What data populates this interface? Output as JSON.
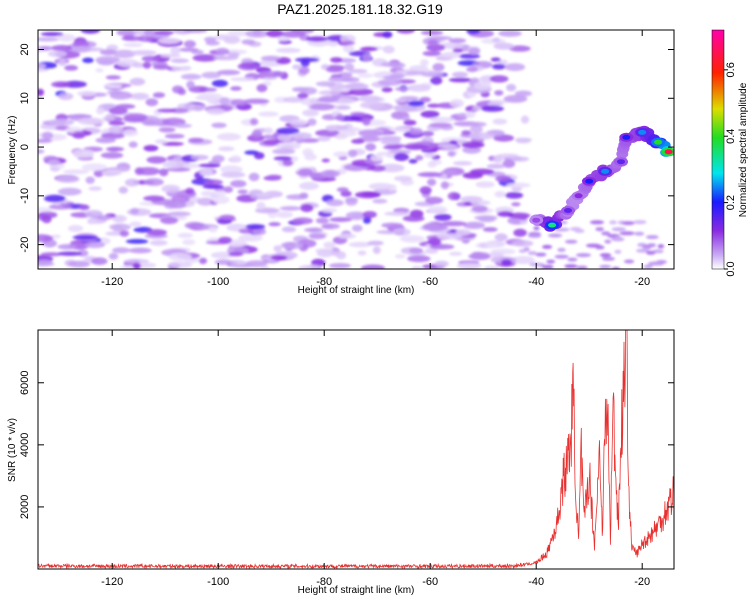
{
  "figure_title": "PAZ1.2025.181.18.32.G19",
  "chart_data": [
    {
      "type": "heatmap",
      "title": "PAZ1.2025.181.18.32.G19",
      "xlabel": "Height of straight line (km)",
      "ylabel": "Frequency (Hz)",
      "xlim": [
        -134,
        -14
      ],
      "ylim": [
        -25,
        24
      ],
      "xticks": [
        -120,
        -100,
        -80,
        -60,
        -40,
        -20
      ],
      "yticks": [
        -20,
        -10,
        0,
        10,
        20
      ],
      "colorbar": {
        "label": "Normalized spectral amplitude",
        "range": [
          0,
          0.72
        ],
        "ticks": [
          0.0,
          0.2,
          0.4,
          0.6
        ],
        "colormap": "rainbow (white-violet-blue-cyan-green-yellow-red-magenta)"
      },
      "noise_region": {
        "x_range": [
          -134,
          -42
        ],
        "f_range": [
          -25,
          24
        ],
        "typical_amplitude": 0.05
      },
      "signal_ridge": [
        {
          "x": -40,
          "f": -15,
          "amp": 0.1
        },
        {
          "x": -37,
          "f": -16,
          "amp": 0.35
        },
        {
          "x": -34,
          "f": -13,
          "amp": 0.15
        },
        {
          "x": -32,
          "f": -10,
          "amp": 0.12
        },
        {
          "x": -30,
          "f": -7,
          "amp": 0.2
        },
        {
          "x": -27,
          "f": -5,
          "amp": 0.25
        },
        {
          "x": -24,
          "f": -3,
          "amp": 0.15
        },
        {
          "x": -23,
          "f": 2,
          "amp": 0.2
        },
        {
          "x": -20,
          "f": 3,
          "amp": 0.25
        },
        {
          "x": -17,
          "f": 1,
          "amp": 0.4
        },
        {
          "x": -15,
          "f": -1,
          "amp": 0.65
        }
      ],
      "grid": false
    },
    {
      "type": "line",
      "xlabel": "Height of straight line (km)",
      "ylabel": "SNR (10 * v/v)",
      "xlim": [
        -134,
        -14
      ],
      "ylim": [
        0,
        7700
      ],
      "xticks": [
        -120,
        -100,
        -80,
        -60,
        -40,
        -20
      ],
      "yticks": [
        2000,
        4000,
        6000
      ],
      "color": "#e8312f",
      "series": [
        {
          "x": [
            -134,
            -120,
            -100,
            -80,
            -60,
            -44,
            -40,
            -38,
            -36,
            -35,
            -34,
            -33.5,
            -33,
            -32.5,
            -32,
            -31.5,
            -31,
            -30,
            -29,
            -28,
            -27.5,
            -27,
            -26.5,
            -26,
            -25.5,
            -25,
            -24.5,
            -24,
            -23.5,
            -23,
            -22.5,
            -22,
            -21,
            -20,
            -19,
            -18,
            -17,
            -16,
            -15,
            -14
          ],
          "y": [
            100,
            90,
            90,
            90,
            90,
            100,
            200,
            500,
            1500,
            2800,
            3500,
            4200,
            5500,
            2500,
            900,
            3800,
            1500,
            3100,
            800,
            3900,
            1200,
            4600,
            5000,
            1000,
            5400,
            3000,
            1500,
            4200,
            5900,
            7700,
            2500,
            700,
            500,
            800,
            1000,
            1200,
            1400,
            1700,
            2100,
            2500
          ]
        }
      ],
      "grid": false
    }
  ]
}
